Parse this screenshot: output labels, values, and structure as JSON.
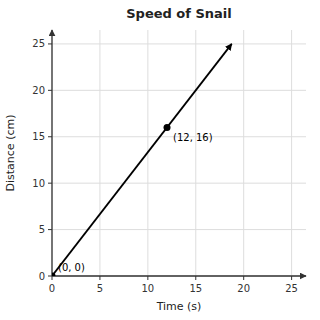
{
  "chart_data": {
    "type": "line",
    "title": "Speed of Snail",
    "x_label": "Time (s)",
    "y_label": "Distance (cm)",
    "xlim": [
      0,
      26.5
    ],
    "ylim": [
      0,
      26.5
    ],
    "xticks": [
      0,
      5,
      10,
      15,
      20,
      25
    ],
    "yticks": [
      0,
      5,
      10,
      15,
      20,
      25
    ],
    "grid": true,
    "series": [
      {
        "type": "line",
        "x": [
          0,
          18.75
        ],
        "values": [
          0,
          25.0
        ],
        "color": "#000000",
        "marker": "arrow"
      },
      {
        "type": "scatter",
        "x": [
          0,
          12
        ],
        "values": [
          0,
          16
        ],
        "color": "#000000",
        "marker": "circle"
      }
    ],
    "annotations": [
      {
        "text": "(0, 0)",
        "x": 0,
        "y": 0
      },
      {
        "text": "(12, 16)",
        "x": 12,
        "y": 16
      }
    ]
  }
}
